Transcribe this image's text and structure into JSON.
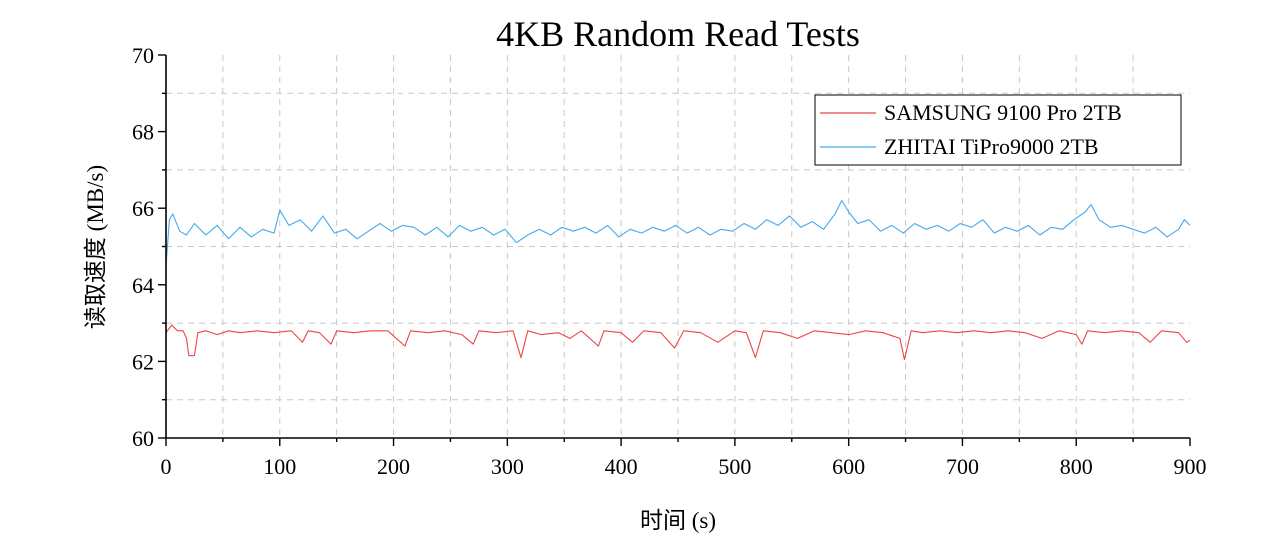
{
  "chart_data": {
    "type": "line",
    "title": "4KB Random Read Tests",
    "xlabel": "时间 (s)",
    "ylabel": "读取速度 (MB/s)",
    "xlim": [
      0,
      900
    ],
    "ylim": [
      60,
      70
    ],
    "x_ticks": [
      "0",
      "100",
      "200",
      "300",
      "400",
      "500",
      "600",
      "700",
      "800",
      "900"
    ],
    "y_ticks": [
      "60",
      "62",
      "64",
      "66",
      "68",
      "70"
    ],
    "grid": true,
    "legend_position": "top-right",
    "series": [
      {
        "name": "SAMSUNG 9100 Pro 2TB",
        "color": "#ee4444",
        "points": [
          [
            0,
            62.75
          ],
          [
            5,
            62.95
          ],
          [
            10,
            62.8
          ],
          [
            15,
            62.8
          ],
          [
            18,
            62.6
          ],
          [
            20,
            62.15
          ],
          [
            25,
            62.15
          ],
          [
            28,
            62.75
          ],
          [
            35,
            62.8
          ],
          [
            45,
            62.7
          ],
          [
            55,
            62.8
          ],
          [
            65,
            62.75
          ],
          [
            80,
            62.8
          ],
          [
            95,
            62.75
          ],
          [
            110,
            62.8
          ],
          [
            120,
            62.5
          ],
          [
            125,
            62.8
          ],
          [
            135,
            62.75
          ],
          [
            145,
            62.45
          ],
          [
            150,
            62.8
          ],
          [
            165,
            62.75
          ],
          [
            180,
            62.8
          ],
          [
            195,
            62.8
          ],
          [
            210,
            62.4
          ],
          [
            215,
            62.8
          ],
          [
            230,
            62.75
          ],
          [
            245,
            62.8
          ],
          [
            260,
            62.7
          ],
          [
            270,
            62.45
          ],
          [
            275,
            62.8
          ],
          [
            290,
            62.75
          ],
          [
            305,
            62.8
          ],
          [
            312,
            62.1
          ],
          [
            318,
            62.8
          ],
          [
            330,
            62.7
          ],
          [
            345,
            62.75
          ],
          [
            355,
            62.6
          ],
          [
            365,
            62.8
          ],
          [
            380,
            62.4
          ],
          [
            385,
            62.8
          ],
          [
            400,
            62.75
          ],
          [
            410,
            62.5
          ],
          [
            420,
            62.8
          ],
          [
            435,
            62.75
          ],
          [
            447,
            62.35
          ],
          [
            455,
            62.8
          ],
          [
            470,
            62.75
          ],
          [
            485,
            62.5
          ],
          [
            500,
            62.8
          ],
          [
            510,
            62.75
          ],
          [
            518,
            62.1
          ],
          [
            525,
            62.8
          ],
          [
            540,
            62.75
          ],
          [
            555,
            62.6
          ],
          [
            570,
            62.8
          ],
          [
            585,
            62.75
          ],
          [
            600,
            62.7
          ],
          [
            615,
            62.8
          ],
          [
            630,
            62.75
          ],
          [
            645,
            62.6
          ],
          [
            649,
            62.05
          ],
          [
            655,
            62.8
          ],
          [
            665,
            62.75
          ],
          [
            680,
            62.8
          ],
          [
            695,
            62.75
          ],
          [
            710,
            62.8
          ],
          [
            725,
            62.75
          ],
          [
            740,
            62.8
          ],
          [
            755,
            62.75
          ],
          [
            770,
            62.6
          ],
          [
            785,
            62.8
          ],
          [
            800,
            62.7
          ],
          [
            805,
            62.45
          ],
          [
            810,
            62.8
          ],
          [
            825,
            62.75
          ],
          [
            840,
            62.8
          ],
          [
            855,
            62.75
          ],
          [
            865,
            62.5
          ],
          [
            875,
            62.8
          ],
          [
            890,
            62.75
          ],
          [
            897,
            62.5
          ],
          [
            900,
            62.55
          ]
        ]
      },
      {
        "name": "ZHITAI TiPro9000 2TB",
        "color": "#44aaee",
        "points": [
          [
            0,
            64.5
          ],
          [
            3,
            65.7
          ],
          [
            6,
            65.85
          ],
          [
            12,
            65.4
          ],
          [
            18,
            65.3
          ],
          [
            25,
            65.6
          ],
          [
            35,
            65.3
          ],
          [
            45,
            65.55
          ],
          [
            55,
            65.2
          ],
          [
            65,
            65.5
          ],
          [
            75,
            65.25
          ],
          [
            85,
            65.45
          ],
          [
            95,
            65.35
          ],
          [
            100,
            65.95
          ],
          [
            108,
            65.55
          ],
          [
            118,
            65.7
          ],
          [
            128,
            65.4
          ],
          [
            138,
            65.8
          ],
          [
            148,
            65.35
          ],
          [
            158,
            65.45
          ],
          [
            168,
            65.2
          ],
          [
            178,
            65.4
          ],
          [
            188,
            65.6
          ],
          [
            198,
            65.4
          ],
          [
            208,
            65.55
          ],
          [
            218,
            65.5
          ],
          [
            228,
            65.3
          ],
          [
            238,
            65.5
          ],
          [
            248,
            65.25
          ],
          [
            258,
            65.55
          ],
          [
            268,
            65.4
          ],
          [
            278,
            65.5
          ],
          [
            288,
            65.3
          ],
          [
            298,
            65.45
          ],
          [
            308,
            65.1
          ],
          [
            318,
            65.3
          ],
          [
            328,
            65.45
          ],
          [
            338,
            65.3
          ],
          [
            348,
            65.5
          ],
          [
            358,
            65.4
          ],
          [
            368,
            65.5
          ],
          [
            378,
            65.35
          ],
          [
            388,
            65.55
          ],
          [
            398,
            65.25
          ],
          [
            408,
            65.45
          ],
          [
            418,
            65.35
          ],
          [
            428,
            65.5
          ],
          [
            438,
            65.4
          ],
          [
            448,
            65.55
          ],
          [
            458,
            65.35
          ],
          [
            468,
            65.5
          ],
          [
            478,
            65.3
          ],
          [
            488,
            65.45
          ],
          [
            498,
            65.4
          ],
          [
            508,
            65.6
          ],
          [
            518,
            65.45
          ],
          [
            528,
            65.7
          ],
          [
            538,
            65.55
          ],
          [
            548,
            65.8
          ],
          [
            558,
            65.5
          ],
          [
            568,
            65.65
          ],
          [
            578,
            65.45
          ],
          [
            588,
            65.85
          ],
          [
            594,
            66.2
          ],
          [
            600,
            65.9
          ],
          [
            608,
            65.6
          ],
          [
            618,
            65.7
          ],
          [
            628,
            65.4
          ],
          [
            638,
            65.55
          ],
          [
            648,
            65.35
          ],
          [
            658,
            65.6
          ],
          [
            668,
            65.45
          ],
          [
            678,
            65.55
          ],
          [
            688,
            65.4
          ],
          [
            698,
            65.6
          ],
          [
            708,
            65.5
          ],
          [
            718,
            65.7
          ],
          [
            728,
            65.35
          ],
          [
            738,
            65.5
          ],
          [
            748,
            65.4
          ],
          [
            758,
            65.55
          ],
          [
            768,
            65.3
          ],
          [
            778,
            65.5
          ],
          [
            788,
            65.45
          ],
          [
            798,
            65.7
          ],
          [
            808,
            65.9
          ],
          [
            813,
            66.1
          ],
          [
            820,
            65.7
          ],
          [
            830,
            65.5
          ],
          [
            840,
            65.55
          ],
          [
            850,
            65.45
          ],
          [
            860,
            65.35
          ],
          [
            870,
            65.5
          ],
          [
            880,
            65.25
          ],
          [
            890,
            65.45
          ],
          [
            895,
            65.7
          ],
          [
            900,
            65.55
          ]
        ]
      }
    ]
  }
}
